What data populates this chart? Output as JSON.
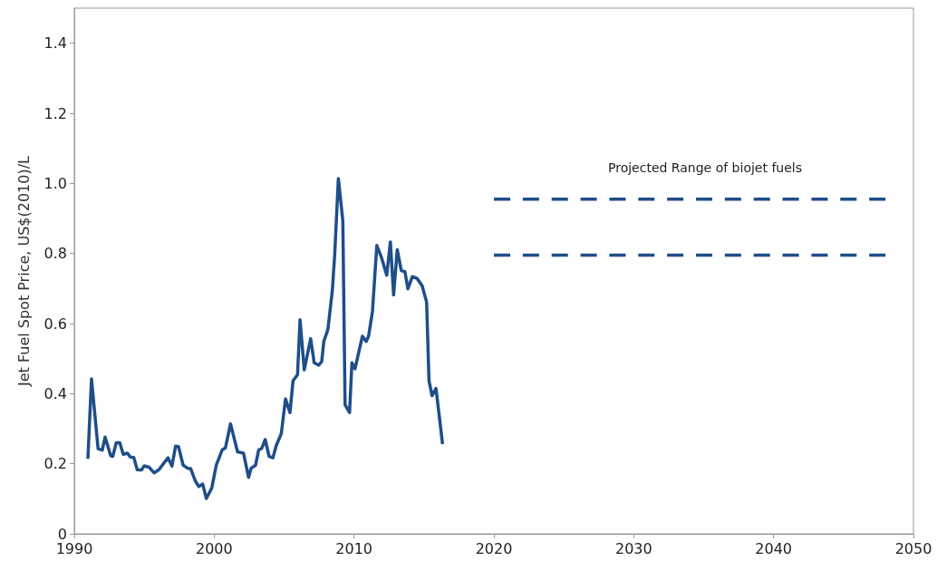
{
  "chart_data": {
    "type": "line",
    "ylabel": "Jet Fuel Spot Price, US$(2010)/L",
    "xlim": [
      1990,
      2050
    ],
    "xticks": [
      1990,
      2000,
      2010,
      2020,
      2030,
      2040,
      2050
    ],
    "ylim": [
      0,
      1.5
    ],
    "yticks": [
      0,
      {
        "value": 0.2,
        "label": "0.2"
      },
      {
        "value": 0.4,
        "label": "0.4"
      },
      {
        "value": 0.6,
        "label": "0.6"
      },
      {
        "value": 0.8,
        "label": "0.8"
      },
      {
        "value": 1,
        "label": "1.0"
      },
      {
        "value": 1.2,
        "label": "1.2"
      },
      {
        "value": 1.4,
        "label": "1.4"
      }
    ],
    "grid": false,
    "marker": "none",
    "annotations": [
      "Projected Range of biojet fuels"
    ],
    "series": [
      {
        "color": "#1f4e89",
        "line_style": "solid",
        "x": [
          1990.97,
          1991.23,
          1991.7,
          1992.0,
          1992.2,
          1992.6,
          1992.75,
          1993.0,
          1993.25,
          1993.5,
          1993.8,
          1994.0,
          1994.25,
          1994.5,
          1994.8,
          1995.0,
          1995.35,
          1995.7,
          1996.05,
          1996.37,
          1996.7,
          1996.98,
          1997.24,
          1997.45,
          1997.78,
          1998.1,
          1998.32,
          1998.64,
          1998.9,
          1999.18,
          1999.44,
          1999.83,
          2000.15,
          2000.58,
          2000.8,
          2001.17,
          2001.67,
          2002.1,
          2002.46,
          2002.64,
          2002.96,
          2003.18,
          2003.4,
          2003.65,
          2003.93,
          2004.2,
          2004.43,
          2004.8,
          2005.1,
          2005.42,
          2005.64,
          2005.96,
          2006.14,
          2006.44,
          2006.9,
          2007.15,
          2007.48,
          2007.69,
          2007.84,
          2008.13,
          2008.45,
          2008.62,
          2008.88,
          2009.2,
          2009.36,
          2009.68,
          2009.85,
          2010.07,
          2010.6,
          2010.87,
          2011.04,
          2011.32,
          2011.63,
          2011.95,
          2012.34,
          2012.6,
          2012.83,
          2013.09,
          2013.38,
          2013.64,
          2013.85,
          2014.17,
          2014.5,
          2014.87,
          2015.19,
          2015.36,
          2015.58,
          2015.86,
          2016.33
        ],
        "values": [
          0.214,
          0.442,
          0.243,
          0.239,
          0.276,
          0.223,
          0.221,
          0.26,
          0.26,
          0.227,
          0.23,
          0.219,
          0.218,
          0.183,
          0.182,
          0.194,
          0.19,
          0.174,
          0.183,
          0.2,
          0.217,
          0.193,
          0.25,
          0.249,
          0.196,
          0.187,
          0.186,
          0.152,
          0.135,
          0.142,
          0.101,
          0.131,
          0.196,
          0.24,
          0.245,
          0.314,
          0.234,
          0.23,
          0.161,
          0.187,
          0.196,
          0.239,
          0.244,
          0.269,
          0.221,
          0.217,
          0.251,
          0.286,
          0.385,
          0.346,
          0.437,
          0.454,
          0.611,
          0.468,
          0.557,
          0.488,
          0.481,
          0.492,
          0.549,
          0.583,
          0.695,
          0.798,
          1.014,
          0.893,
          0.368,
          0.346,
          0.488,
          0.471,
          0.564,
          0.549,
          0.564,
          0.635,
          0.823,
          0.79,
          0.738,
          0.833,
          0.682,
          0.811,
          0.751,
          0.748,
          0.699,
          0.734,
          0.729,
          0.708,
          0.661,
          0.437,
          0.394,
          0.415,
          0.256
        ]
      },
      {
        "color": "#1f4e89",
        "line_style": "dashed",
        "x": [
          2020,
          2048
        ],
        "values": [
          0.955,
          0.955
        ]
      },
      {
        "color": "#1f4e89",
        "line_style": "dashed",
        "x": [
          2020,
          2048
        ],
        "values": [
          0.795,
          0.795
        ]
      }
    ]
  }
}
